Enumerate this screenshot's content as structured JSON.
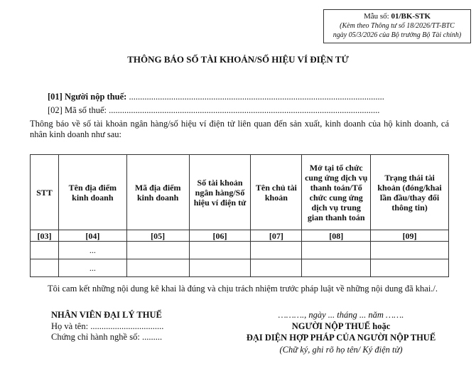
{
  "form_box": {
    "code_label": "Mẫu số: ",
    "code": "01/BK-STK",
    "note_line1": "(Kèm theo Thông tư số 18/2026/TT-BTC",
    "note_line2": "ngày 05/3/2026 của Bộ trưởng Bộ Tài chính)"
  },
  "title": "THÔNG BÁO SỐ TÀI KHOẢN/SỐ HIỆU VÍ ĐIỆN TỬ",
  "fields": {
    "taxpayer_label": "[01] Người nộp thuế:",
    "taxpayer_value": "...................................................................................................................",
    "tax_code_label": "[02] Mã số thuế:",
    "tax_code_value": ".........................................................................................................................."
  },
  "intro": "Thông báo về số tài khoản ngân hàng/số hiệu ví điện tử liên quan đến sản xuất, kinh doanh của hộ kinh doanh, cá nhân kinh doanh như sau:",
  "table": {
    "headers": [
      "STT",
      "Tên địa điểm kinh doanh",
      "Mã địa điểm kinh doanh",
      "Số tài khoản ngân hàng/Số hiệu ví điện tử",
      "Tên chủ tài khoản",
      "Mở tại tổ chức cung ứng dịch vụ thanh toán/Tổ chức cung ứng dịch vụ trung gian thanh toán",
      "Trạng thái tài khoản (đóng/khai lần đầu/thay đổi thông tin)"
    ],
    "codes": [
      "[03]",
      "[04]",
      "[05]",
      "[06]",
      "[07]",
      "[08]",
      "[09]"
    ],
    "rows": [
      [
        "",
        "...",
        "",
        "",
        "",
        "",
        ""
      ],
      [
        "",
        "...",
        "",
        "",
        "",
        "",
        ""
      ]
    ]
  },
  "commitment": "Tôi cam kết những nội dung kê khai là đúng và chịu trách nhiệm trước pháp luật về những nội dung đã khai./.",
  "agent": {
    "title": "NHÂN VIÊN ĐẠI LÝ THUẾ",
    "name_line": "Họ và tên: .................................",
    "cert_line": "Chứng chỉ hành nghề số: ........."
  },
  "signer": {
    "date_line": "………., ngày ... tháng ... năm …….",
    "title1": "NGƯỜI NỘP THUẾ hoặc",
    "title2": "ĐẠI DIỆN HỢP PHÁP CỦA NGƯỜI NỘP THUẾ",
    "sign_note": "(Chữ ký, ghi rõ họ tên/ Ký điện tử)"
  }
}
